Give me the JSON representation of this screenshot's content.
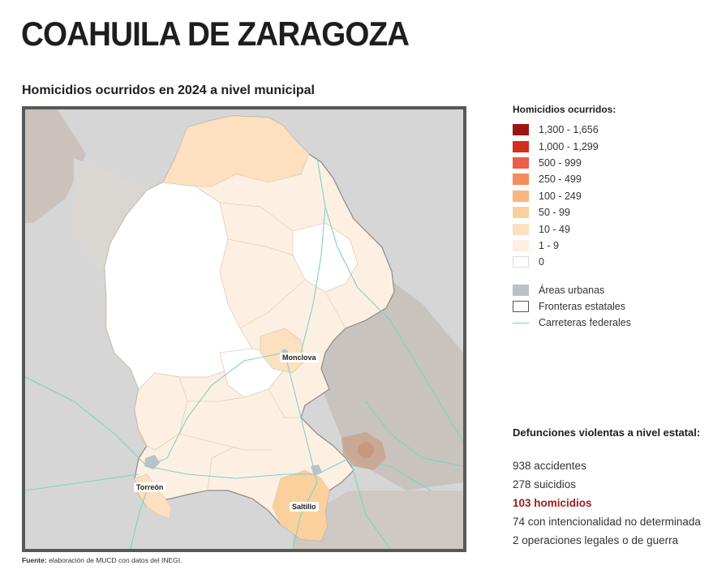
{
  "header": {
    "title": "COAHUILA DE ZARAGOZA",
    "subtitle": "Homicidios ocurridos en 2024 a nivel municipal"
  },
  "map": {
    "cities": [
      "Monclova",
      "Torreón",
      "Saltillo"
    ],
    "colors": {
      "outside": "#d6d6d6",
      "outside_dark": "#cbc2bb",
      "state_border": "#8a8a8a",
      "municipal_border": "#e0cdb8",
      "highway": "#7ed3c2",
      "urban": "#b7c2c9"
    }
  },
  "legend": {
    "title": "Homicidios ocurridos:",
    "classes": [
      {
        "label": "1,300 - 1,656",
        "color": "#9e1313"
      },
      {
        "label": "1,000 - 1,299",
        "color": "#d42e1e"
      },
      {
        "label": "500 - 999",
        "color": "#ec5e4a"
      },
      {
        "label": "250 - 499",
        "color": "#f68c5a"
      },
      {
        "label": "100 - 249",
        "color": "#f9b67e"
      },
      {
        "label": "50 - 99",
        "color": "#fbd09c"
      },
      {
        "label": "10 - 49",
        "color": "#fce0bf"
      },
      {
        "label": "1 - 9",
        "color": "#fdf0e2"
      },
      {
        "label": "0",
        "color": "#ffffff"
      }
    ],
    "extras": {
      "urban": "Áreas urbanas",
      "borders": "Fronteras estatales",
      "highways": "Carreteras federales"
    }
  },
  "stats": {
    "title": "Defunciones violentas a nivel estatal:",
    "lines": [
      {
        "text": "938 accidentes",
        "highlight": false
      },
      {
        "text": "278 suicidios",
        "highlight": false
      },
      {
        "text": "103 homicidios",
        "highlight": true
      },
      {
        "text": "74 con intencionalidad no determinada",
        "highlight": false
      },
      {
        "text": "2 operaciones legales o de guerra",
        "highlight": false
      }
    ]
  },
  "source": {
    "label": "Fuente:",
    "text": " elaboración de MUCD con datos del INEGI."
  }
}
